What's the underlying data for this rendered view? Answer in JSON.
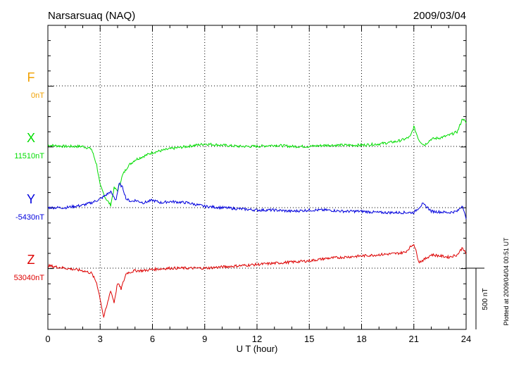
{
  "header": {
    "station": "Narsarsuaq (NAQ)",
    "date": "2009/03/04"
  },
  "footer": {
    "plotted_at": "Plotted at 2009/04/04 00:51 UT",
    "scale_label": "500 nT"
  },
  "chart_data": {
    "type": "line",
    "title": "Narsarsuaq (NAQ)",
    "xlabel": "U T (hour)",
    "ylabel": "",
    "xlim": [
      0,
      24
    ],
    "xticks": [
      "0",
      "3",
      "6",
      "9",
      "12",
      "15",
      "18",
      "21",
      "24"
    ],
    "grid": true,
    "scale_bar_nT": 500,
    "series": [
      {
        "name": "F",
        "baseline_label": "0nT",
        "color": "#f0a000",
        "x": [],
        "y": []
      },
      {
        "name": "X",
        "baseline_label": "11510nT",
        "color": "#00dd00",
        "x": [
          0,
          1,
          2,
          2.5,
          2.8,
          3,
          3.3,
          3.6,
          3.8,
          4,
          4.3,
          4.6,
          5,
          5.5,
          6,
          7,
          8,
          9,
          10,
          11,
          12,
          13,
          14,
          15,
          16,
          17,
          18,
          19,
          20,
          20.5,
          20.8,
          21,
          21.3,
          21.6,
          22,
          22.5,
          23,
          23.5,
          23.8,
          24
        ],
        "y": [
          10,
          0,
          0,
          -20,
          -150,
          -320,
          -420,
          -480,
          -340,
          -360,
          -230,
          -160,
          -110,
          -80,
          -50,
          -20,
          0,
          20,
          10,
          0,
          0,
          10,
          0,
          0,
          10,
          10,
          10,
          20,
          40,
          60,
          80,
          160,
          50,
          10,
          60,
          70,
          90,
          120,
          230,
          190
        ]
      },
      {
        "name": "Y",
        "baseline_label": "-5430nT",
        "color": "#0000dd",
        "x": [
          0,
          1,
          2,
          2.5,
          3,
          3.3,
          3.6,
          3.9,
          4.1,
          4.3,
          4.5,
          4.8,
          5,
          5.5,
          6,
          6.5,
          7,
          8,
          9,
          10,
          11,
          12,
          13,
          14,
          15,
          16,
          17,
          18,
          19,
          20,
          21,
          21.5,
          21.8,
          22,
          23,
          23.5,
          23.8,
          24
        ],
        "y": [
          0,
          0,
          20,
          40,
          70,
          100,
          130,
          60,
          200,
          160,
          70,
          50,
          60,
          40,
          60,
          40,
          50,
          40,
          10,
          0,
          -10,
          -20,
          -20,
          -30,
          -20,
          -20,
          -30,
          -30,
          -40,
          -40,
          -40,
          30,
          0,
          -30,
          -40,
          -30,
          20,
          -100
        ]
      },
      {
        "name": "Z",
        "baseline_label": "53040nT",
        "color": "#dd0000",
        "x": [
          0,
          1,
          2,
          2.5,
          2.8,
          3,
          3.2,
          3.4,
          3.6,
          3.8,
          4,
          4.2,
          4.5,
          4.8,
          5,
          5.5,
          6,
          7,
          8,
          9,
          10,
          11,
          12,
          13,
          14,
          15,
          16,
          17,
          18,
          19,
          20,
          20.5,
          21,
          21.3,
          21.6,
          22,
          23,
          23.5,
          23.8,
          24
        ],
        "y": [
          20,
          0,
          -20,
          -40,
          -120,
          -250,
          -400,
          -300,
          -180,
          -280,
          -120,
          -170,
          -40,
          -30,
          -20,
          -20,
          -10,
          0,
          0,
          0,
          10,
          20,
          30,
          40,
          50,
          60,
          80,
          90,
          100,
          110,
          120,
          130,
          200,
          50,
          70,
          110,
          90,
          110,
          170,
          110
        ]
      }
    ]
  }
}
